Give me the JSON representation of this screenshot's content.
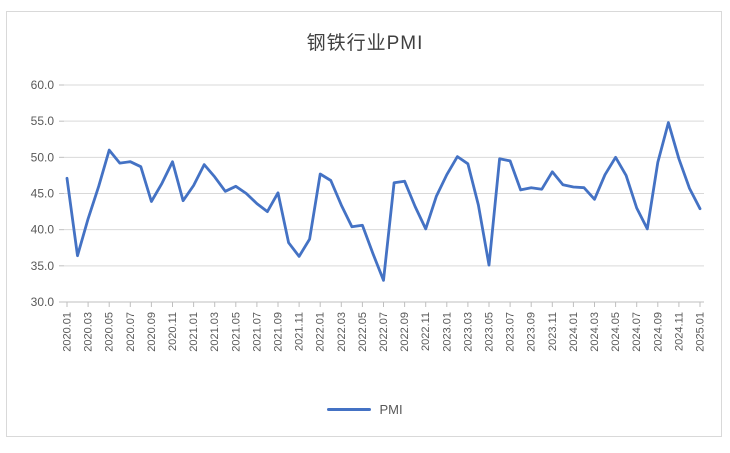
{
  "chart_data": {
    "type": "line",
    "title": "钢铁行业PMI",
    "xlabel": "",
    "ylabel": "",
    "ylim": [
      30,
      60
    ],
    "y_ticks": [
      60,
      55,
      50,
      45,
      40,
      35,
      30
    ],
    "y_tick_labels": [
      "60.0",
      "55.0",
      "50.0",
      "45.0",
      "40.0",
      "35.0",
      "30.0"
    ],
    "grid": true,
    "legend_position": "bottom",
    "x": [
      "2020.01",
      "2020.02",
      "2020.03",
      "2020.04",
      "2020.05",
      "2020.06",
      "2020.07",
      "2020.08",
      "2020.09",
      "2020.10",
      "2020.11",
      "2020.12",
      "2021.01",
      "2021.02",
      "2021.03",
      "2021.04",
      "2021.05",
      "2021.06",
      "2021.07",
      "2021.08",
      "2021.09",
      "2021.10",
      "2021.11",
      "2021.12",
      "2022.01",
      "2022.02",
      "2022.03",
      "2022.04",
      "2022.05",
      "2022.06",
      "2022.07",
      "2022.08",
      "2022.09",
      "2022.10",
      "2022.11",
      "2022.12",
      "2023.01",
      "2023.02",
      "2023.03",
      "2023.04",
      "2023.05",
      "2023.06",
      "2023.07",
      "2023.08",
      "2023.09",
      "2023.10",
      "2023.11",
      "2023.12",
      "2024.01",
      "2024.02",
      "2024.03",
      "2024.04",
      "2024.05",
      "2024.06",
      "2024.07",
      "2024.08",
      "2024.09",
      "2024.10",
      "2024.11",
      "2024.12",
      "2025.01"
    ],
    "x_tick_labels": [
      "2020.01",
      "2020.03",
      "2020.05",
      "2020.07",
      "2020.09",
      "2020.11",
      "2021.01",
      "2021.03",
      "2021.05",
      "2021.07",
      "2021.09",
      "2021.11",
      "2022.01",
      "2022.03",
      "2022.05",
      "2022.07",
      "2022.09",
      "2022.11",
      "2023.01",
      "2023.03",
      "2023.05",
      "2023.07",
      "2023.09",
      "2023.11",
      "2024.01",
      "2024.03",
      "2024.05",
      "2024.07",
      "2024.09",
      "2024.11",
      "2025.01"
    ],
    "series": [
      {
        "name": "PMI",
        "values": [
          47.1,
          36.4,
          41.5,
          46.0,
          51.0,
          49.2,
          49.4,
          48.7,
          43.9,
          46.4,
          49.4,
          44.0,
          46.1,
          49.0,
          47.3,
          45.3,
          46.0,
          45.0,
          43.6,
          42.5,
          45.1,
          38.2,
          36.3,
          38.7,
          47.7,
          46.8,
          43.4,
          40.4,
          40.6,
          36.7,
          33.0,
          46.5,
          46.7,
          43.2,
          40.1,
          44.6,
          47.6,
          50.1,
          49.1,
          43.4,
          35.1,
          49.8,
          49.5,
          45.5,
          45.8,
          45.6,
          48.0,
          46.2,
          45.9,
          45.8,
          44.2,
          47.6,
          50.0,
          47.5,
          43.0,
          40.1,
          49.3,
          54.8,
          49.8,
          45.7,
          42.9
        ]
      }
    ],
    "colors": {
      "line": "#4472c4",
      "gridline": "#d9d9d9",
      "axis_line": "#bfbfbf",
      "tick_label": "#595959",
      "title": "#404040",
      "border": "#d9d9d9"
    }
  },
  "legend": {
    "label": "PMI"
  }
}
